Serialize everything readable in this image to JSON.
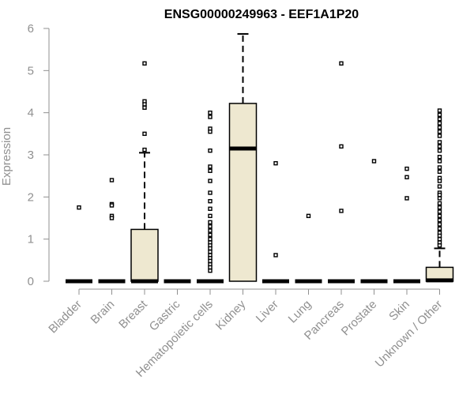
{
  "chart_data": {
    "type": "box",
    "title": "ENSG00000249963 - EEF1A1P20",
    "xlabel": "",
    "ylabel": "Expression",
    "ylim": [
      0,
      6
    ],
    "yticks": [
      0,
      1,
      2,
      3,
      4,
      5,
      6
    ],
    "grid": false,
    "box_color": "#EEE8D0",
    "categories": [
      "Bladder",
      "Brain",
      "Breast",
      "Gastric",
      "Hematopoietic cells",
      "Kidney",
      "Liver",
      "Lung",
      "Pancreas",
      "Prostate",
      "Skin",
      "Unknown / Other"
    ],
    "boxes": [
      {
        "min": 0,
        "q1": 0,
        "median": 0,
        "q3": 0,
        "max": 0,
        "outliers": [
          1.75
        ]
      },
      {
        "min": 0,
        "q1": 0,
        "median": 0,
        "q3": 0,
        "max": 0,
        "outliers": [
          2.4,
          1.83,
          1.8,
          1.55,
          1.5
        ]
      },
      {
        "min": 0,
        "q1": 0,
        "median": 0,
        "q3": 1.23,
        "max": 3.05,
        "outliers": [
          5.17,
          4.27,
          4.2,
          4.12,
          3.5,
          3.12
        ]
      },
      {
        "min": 0,
        "q1": 0,
        "median": 0,
        "q3": 0,
        "max": 0,
        "outliers": []
      },
      {
        "min": 0,
        "q1": 0,
        "median": 0,
        "q3": 0,
        "max": 0,
        "outliers": [
          4.0,
          3.9,
          3.62,
          3.55,
          3.1,
          2.72,
          2.62,
          2.38,
          2.1,
          1.9,
          1.72,
          1.55,
          1.4,
          1.3,
          1.2,
          1.1,
          1.0,
          0.92,
          0.85,
          0.78,
          0.7,
          0.62,
          0.55,
          0.48,
          0.4,
          0.33,
          0.25
        ]
      },
      {
        "min": 0,
        "q1": 0,
        "median": 3.15,
        "q3": 4.22,
        "max": 5.87,
        "outliers": []
      },
      {
        "min": 0,
        "q1": 0,
        "median": 0,
        "q3": 0,
        "max": 0,
        "outliers": [
          2.8,
          0.62
        ]
      },
      {
        "min": 0,
        "q1": 0,
        "median": 0,
        "q3": 0,
        "max": 0,
        "outliers": [
          1.55
        ]
      },
      {
        "min": 0,
        "q1": 0,
        "median": 0,
        "q3": 0,
        "max": 0,
        "outliers": [
          5.17,
          3.2,
          1.67
        ]
      },
      {
        "min": 0,
        "q1": 0,
        "median": 0,
        "q3": 0,
        "max": 0,
        "outliers": [
          2.85
        ]
      },
      {
        "min": 0,
        "q1": 0,
        "median": 0,
        "q3": 0,
        "max": 0,
        "outliers": [
          2.67,
          2.47,
          1.97
        ]
      },
      {
        "min": 0,
        "q1": 0,
        "median": 0.02,
        "q3": 0.33,
        "max": 0.78,
        "outliers": [
          4.05,
          3.95,
          3.85,
          3.75,
          3.65,
          3.55,
          3.45,
          3.3,
          3.2,
          3.1,
          2.95,
          2.85,
          2.7,
          2.6,
          2.45,
          2.38,
          2.25,
          2.1,
          2.05,
          1.97,
          1.85,
          1.75,
          1.65,
          1.55,
          1.45,
          1.35,
          1.25,
          1.15,
          1.08,
          1.0,
          0.92,
          0.85
        ]
      }
    ]
  }
}
